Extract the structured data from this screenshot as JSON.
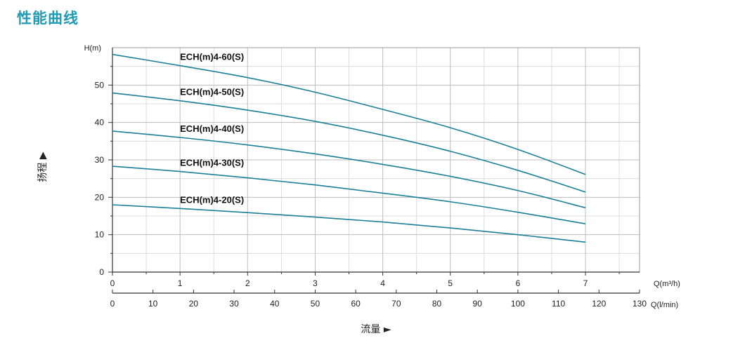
{
  "page": {
    "title": "性能曲线"
  },
  "chart_data": {
    "type": "line",
    "ylabel": "扬程 ▶",
    "xlabel": "流量 ►",
    "y_unit": "H(m)",
    "x_unit_primary": "Q(m³/h)",
    "x_unit_secondary": "Q(l/min)",
    "ylim": [
      0,
      60
    ],
    "yticks": [
      0,
      10,
      20,
      30,
      40,
      50
    ],
    "xlim": [
      0,
      7.8
    ],
    "xticks": [
      0,
      1,
      2,
      3,
      4,
      5,
      6,
      7
    ],
    "x2lim": [
      0,
      130
    ],
    "x2ticks": [
      0,
      10,
      20,
      30,
      40,
      50,
      60,
      70,
      80,
      90,
      100,
      110,
      120,
      130
    ],
    "grid": true,
    "colors": {
      "line": "#1a7f98",
      "grid": "#bdbdbd",
      "axis": "#333333",
      "title": "#1f9bb4"
    },
    "series": [
      {
        "name": "ECH(m)4-60(S)",
        "x": [
          0,
          1,
          2,
          3,
          4,
          5,
          6,
          7
        ],
        "y": [
          58.2,
          55.2,
          52.0,
          48.1,
          43.5,
          38.6,
          32.8,
          26.1
        ]
      },
      {
        "name": "ECH(m)4-50(S)",
        "x": [
          0,
          1,
          2,
          3,
          4,
          5,
          6,
          7
        ],
        "y": [
          47.9,
          45.8,
          43.3,
          40.3,
          36.6,
          32.3,
          27.2,
          21.4
        ]
      },
      {
        "name": "ECH(m)4-40(S)",
        "x": [
          0,
          1,
          2,
          3,
          4,
          5,
          6,
          7
        ],
        "y": [
          37.7,
          36.0,
          34.0,
          31.6,
          28.8,
          25.6,
          21.8,
          17.2
        ]
      },
      {
        "name": "ECH(m)4-30(S)",
        "x": [
          0,
          1,
          2,
          3,
          4,
          5,
          6,
          7
        ],
        "y": [
          28.3,
          26.9,
          25.2,
          23.3,
          21.1,
          18.8,
          16.0,
          12.9
        ]
      },
      {
        "name": "ECH(m)4-20(S)",
        "x": [
          0,
          1,
          2,
          3,
          4,
          5,
          6,
          7
        ],
        "y": [
          18.0,
          17.0,
          15.9,
          14.7,
          13.4,
          11.8,
          10.0,
          8.0
        ]
      }
    ]
  }
}
